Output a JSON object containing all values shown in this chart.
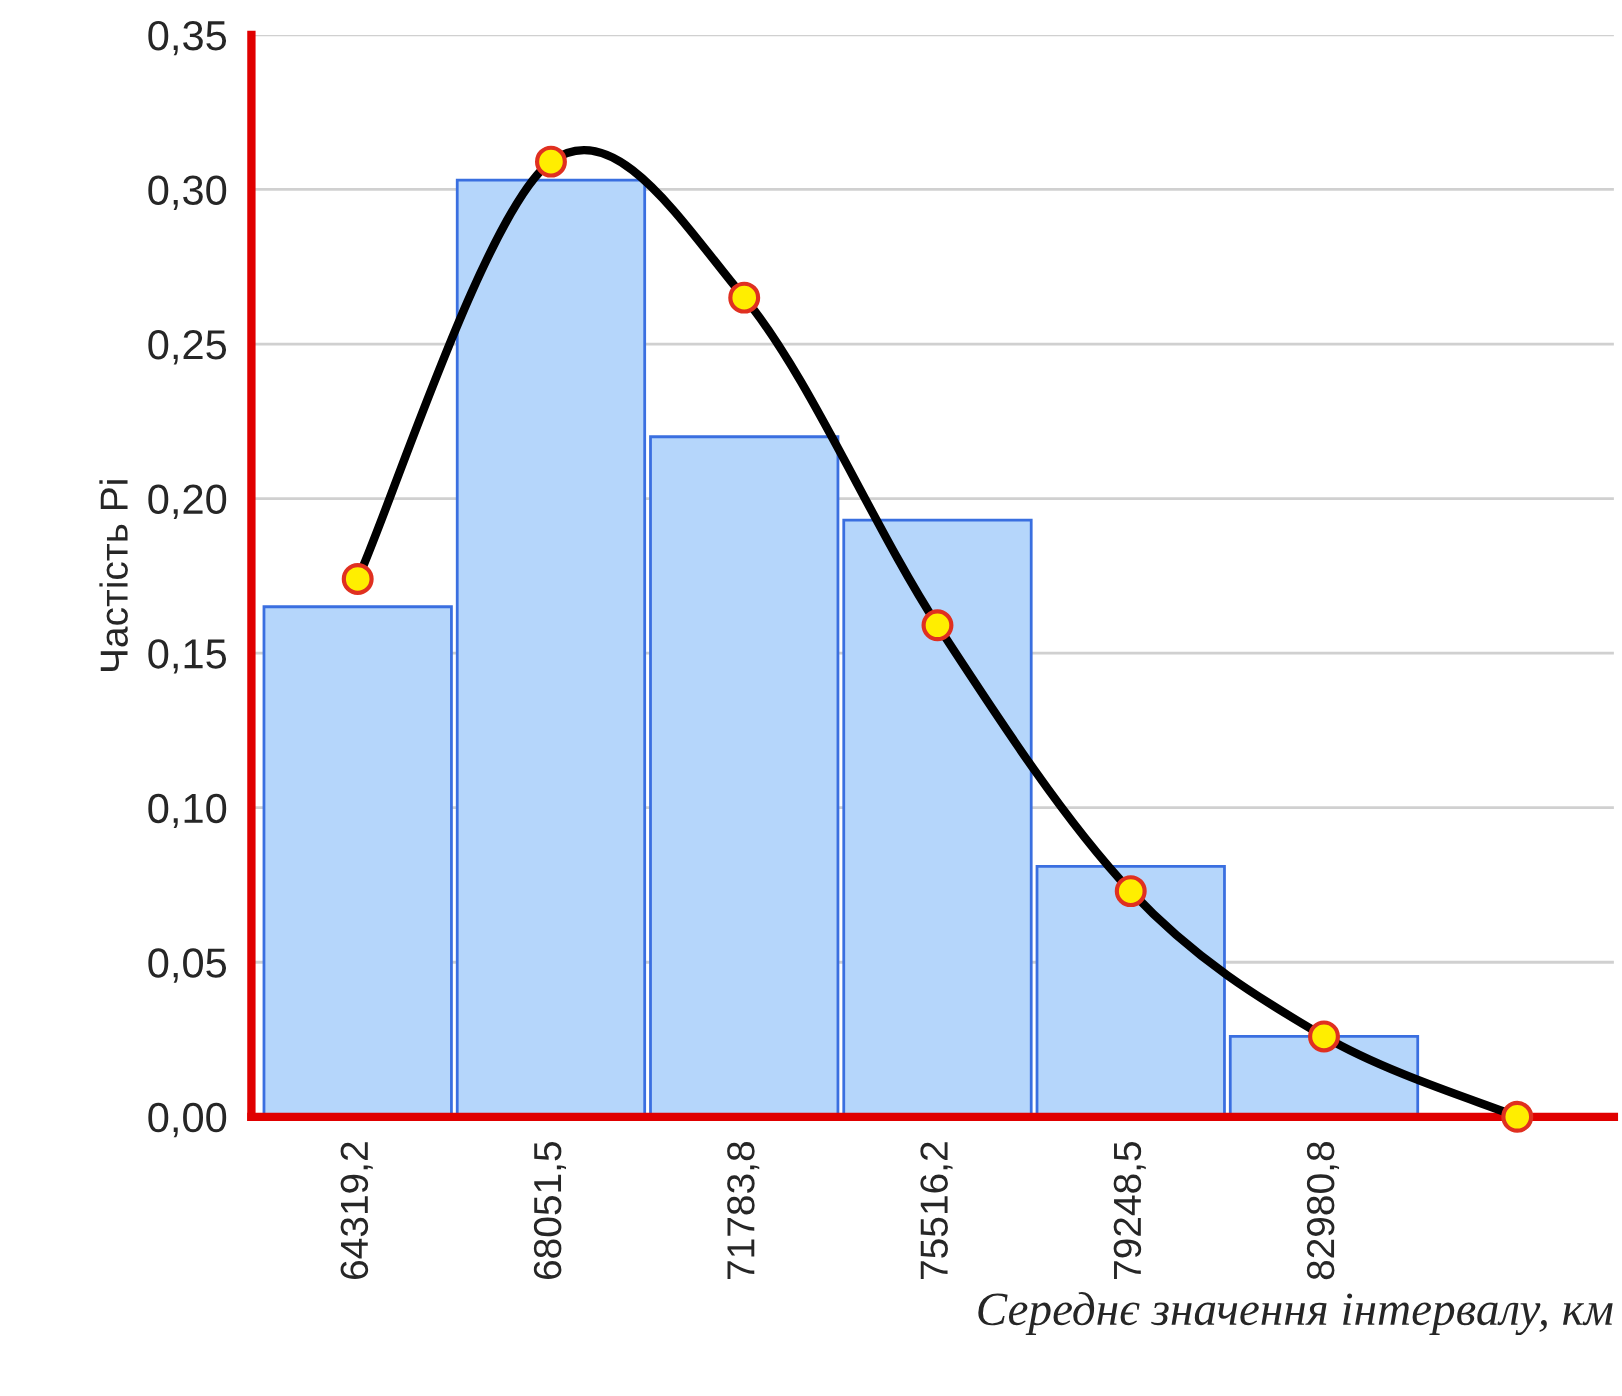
{
  "chart_data": {
    "type": "bar",
    "xlabel": "Середнє значення інтервалу, км",
    "ylabel": "Частість Pi",
    "categories": [
      "64319,2",
      "68051,5",
      "71783,8",
      "75516,2",
      "79248,5",
      "82980,8",
      null
    ],
    "series": [
      {
        "color": "#b5d6fb",
        "values": [
          0.165,
          0.303,
          0.22,
          0.193,
          0.081,
          0.026,
          null
        ]
      },
      {
        "type": "line",
        "color": "#000000",
        "marker": "circle",
        "values": [
          0.174,
          0.309,
          0.265,
          0.159,
          0.073,
          0.026,
          0.0
        ]
      }
    ],
    "ylim": [
      0,
      0.35
    ],
    "yticks": [
      {
        "value": 0,
        "label": "0,00"
      },
      {
        "value": 0.05,
        "label": "0,05"
      },
      {
        "value": 0.1,
        "label": "0,10"
      },
      {
        "value": 0.15,
        "label": "0,15"
      },
      {
        "value": 0.2,
        "label": "0,20"
      },
      {
        "value": 0.25,
        "label": "0,25"
      },
      {
        "value": 0.3,
        "label": "0,30"
      },
      {
        "value": 0.35,
        "label": "0,35"
      }
    ],
    "grid": "y"
  }
}
